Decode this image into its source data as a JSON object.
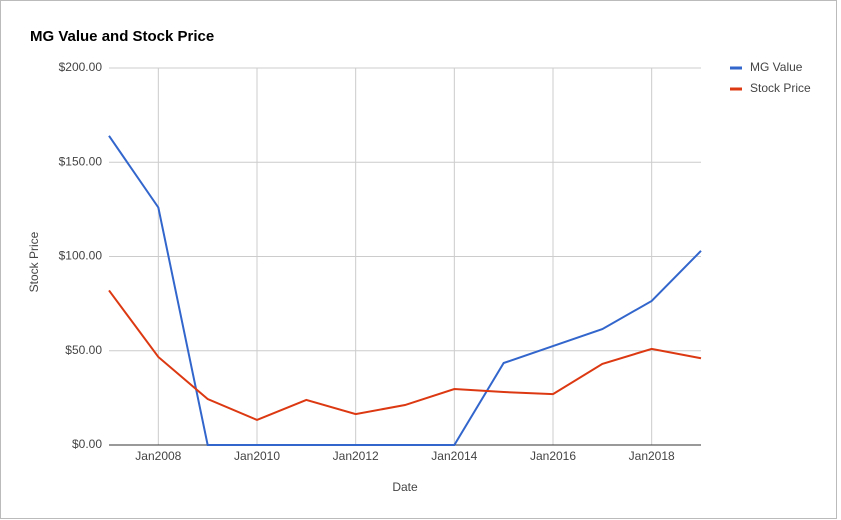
{
  "chart_data": {
    "type": "line",
    "title": "MG Value and Stock Price",
    "x_label": "Date",
    "y_label": "Stock Price",
    "x": [
      2007,
      2008,
      2009,
      2010,
      2011,
      2012,
      2013,
      2014,
      2015,
      2016,
      2017,
      2018,
      2019
    ],
    "series": [
      {
        "name": "MG Value",
        "color": "#3366cc",
        "values": [
          164,
          126,
          0,
          0,
          0,
          0,
          0,
          0,
          43.5,
          52.5,
          61.5,
          76.4,
          103
        ]
      },
      {
        "name": "Stock Price",
        "color": "#dc3912",
        "values": [
          82,
          46.7,
          24.4,
          13.3,
          23.9,
          16.4,
          21.2,
          29.7,
          28.1,
          27,
          43,
          51,
          46
        ]
      }
    ],
    "xlim": [
      2007,
      2019
    ],
    "xticks": [
      {
        "value": 2008,
        "label": "Jan2008"
      },
      {
        "value": 2010,
        "label": "Jan2010"
      },
      {
        "value": 2012,
        "label": "Jan2012"
      },
      {
        "value": 2014,
        "label": "Jan2014"
      },
      {
        "value": 2016,
        "label": "Jan2016"
      },
      {
        "value": 2018,
        "label": "Jan2018"
      }
    ],
    "ylim": [
      0,
      200
    ],
    "yticks": [
      {
        "value": 0,
        "label": "$0.00"
      },
      {
        "value": 50,
        "label": "$50.00"
      },
      {
        "value": 100,
        "label": "$100.00"
      },
      {
        "value": 150,
        "label": "$150.00"
      },
      {
        "value": 200,
        "label": "$200.00"
      }
    ],
    "grid": true,
    "legend": "right"
  }
}
